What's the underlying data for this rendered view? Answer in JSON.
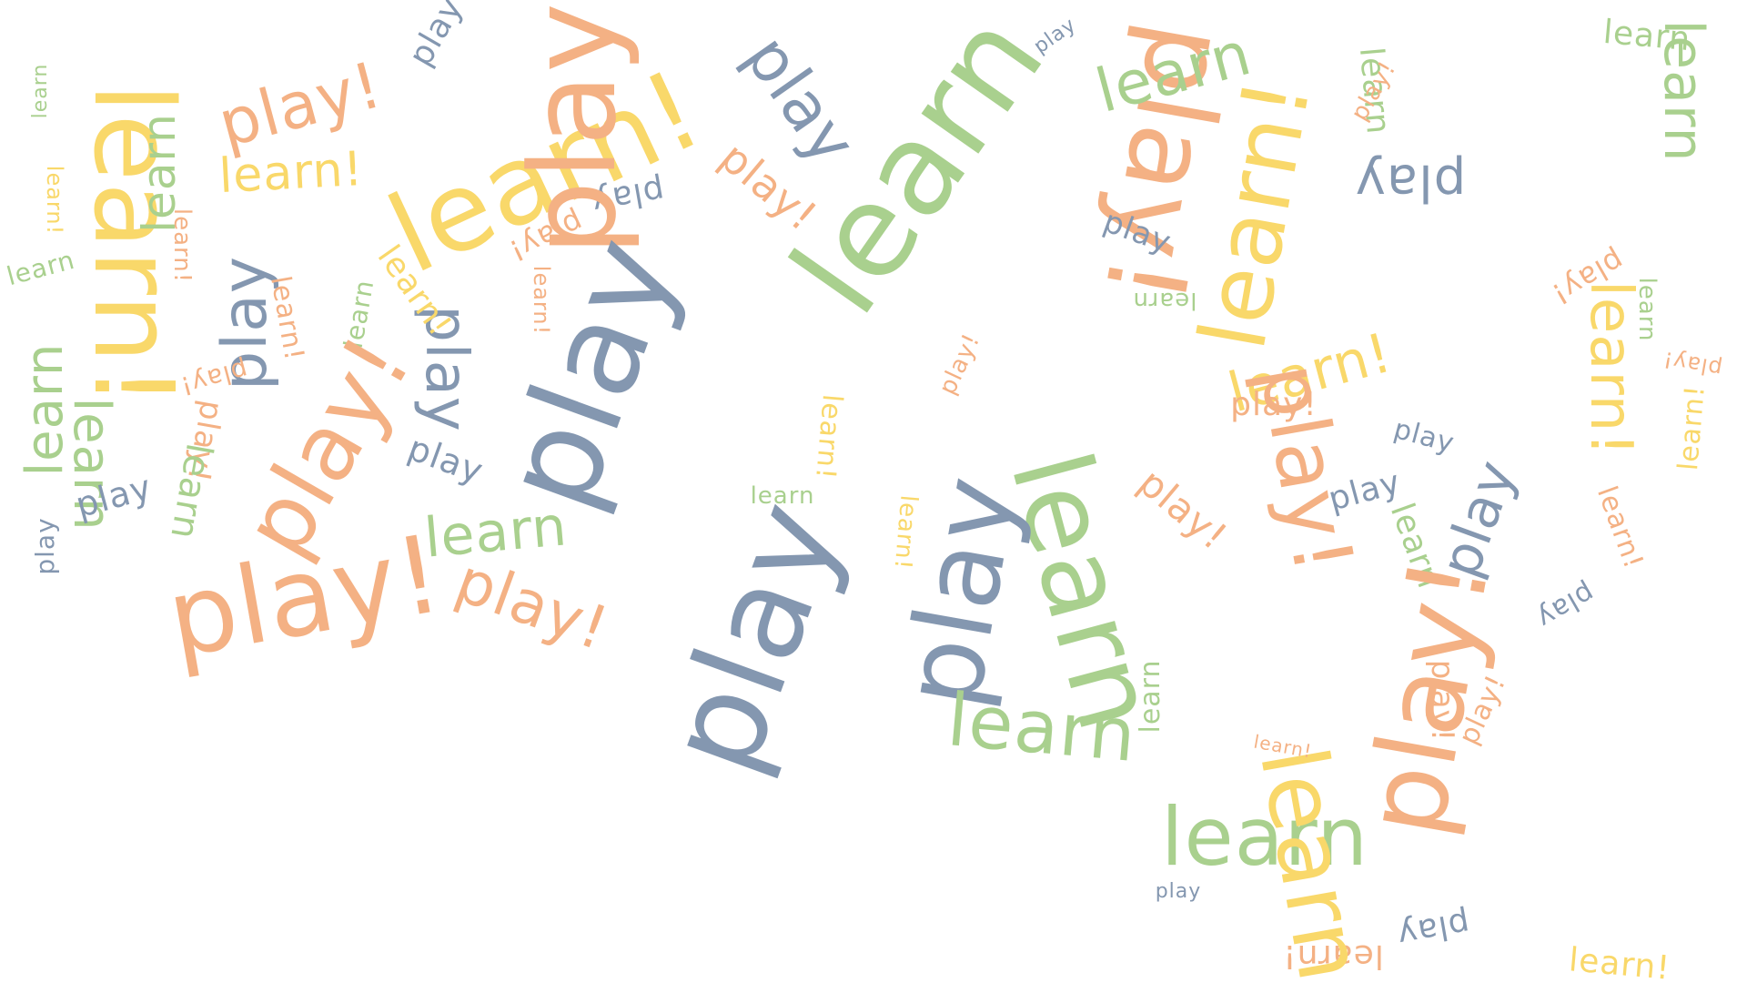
{
  "palette": {
    "yellow": "#f9d86a",
    "orange": "#f4b184",
    "green": "#a9d08e",
    "blue": "#8497b0"
  },
  "words": [
    {
      "text": "learn!",
      "color": "yellow"
    },
    {
      "text": "play!",
      "color": "orange"
    },
    {
      "text": "learn",
      "color": "green"
    },
    {
      "text": "learn!",
      "color": "yellow"
    },
    {
      "text": "play",
      "color": "blue"
    },
    {
      "text": "learn!",
      "color": "yellow"
    },
    {
      "text": "learn",
      "color": "green"
    },
    {
      "text": "learn",
      "color": "green"
    },
    {
      "text": "play",
      "color": "blue"
    },
    {
      "text": "play",
      "color": "blue"
    },
    {
      "text": "learn",
      "color": "green"
    },
    {
      "text": "play!",
      "color": "orange"
    },
    {
      "text": "play",
      "color": "blue"
    },
    {
      "text": "learn",
      "color": "green"
    },
    {
      "text": "learn!",
      "color": "yellow"
    },
    {
      "text": "learn!",
      "color": "orange"
    },
    {
      "text": "play!",
      "color": "orange"
    },
    {
      "text": "learn",
      "color": "green"
    },
    {
      "text": "play!",
      "color": "orange"
    },
    {
      "text": "play",
      "color": "blue"
    },
    {
      "text": "learn!",
      "color": "orange"
    },
    {
      "text": "play",
      "color": "blue"
    },
    {
      "text": "learn",
      "color": "green"
    },
    {
      "text": "play!",
      "color": "orange"
    },
    {
      "text": "learn!",
      "color": "yellow"
    },
    {
      "text": "play!",
      "color": "orange"
    },
    {
      "text": "learn!",
      "color": "orange"
    },
    {
      "text": "play",
      "color": "blue"
    },
    {
      "text": "play!",
      "color": "orange"
    },
    {
      "text": "play",
      "color": "blue"
    },
    {
      "text": "learn",
      "color": "green"
    },
    {
      "text": "play",
      "color": "blue"
    },
    {
      "text": "learn",
      "color": "green"
    },
    {
      "text": "learn!",
      "color": "yellow"
    },
    {
      "text": "learn",
      "color": "green"
    },
    {
      "text": "play!",
      "color": "orange"
    },
    {
      "text": "play",
      "color": "blue"
    },
    {
      "text": "play!",
      "color": "orange"
    },
    {
      "text": "play!",
      "color": "orange"
    },
    {
      "text": "play",
      "color": "blue"
    },
    {
      "text": "learn!",
      "color": "yellow"
    },
    {
      "text": "play!",
      "color": "orange"
    },
    {
      "text": "learn",
      "color": "green"
    },
    {
      "text": "play",
      "color": "blue"
    },
    {
      "text": "learn",
      "color": "green"
    },
    {
      "text": "play!",
      "color": "orange"
    },
    {
      "text": "play!",
      "color": "orange"
    },
    {
      "text": "learn!",
      "color": "yellow"
    },
    {
      "text": "learn",
      "color": "green"
    },
    {
      "text": "play",
      "color": "blue"
    },
    {
      "text": "learn",
      "color": "green"
    },
    {
      "text": "learn!",
      "color": "yellow"
    },
    {
      "text": "play!",
      "color": "orange"
    },
    {
      "text": "play",
      "color": "blue"
    },
    {
      "text": "learn",
      "color": "green"
    },
    {
      "text": "play",
      "color": "blue"
    },
    {
      "text": "learn!",
      "color": "orange"
    },
    {
      "text": "play!",
      "color": "orange"
    },
    {
      "text": "play",
      "color": "blue"
    },
    {
      "text": "learn",
      "color": "green"
    },
    {
      "text": "learn",
      "color": "green"
    },
    {
      "text": "learn",
      "color": "green"
    },
    {
      "text": "learn",
      "color": "green"
    },
    {
      "text": "learn!",
      "color": "orange"
    },
    {
      "text": "learn!",
      "color": "yellow"
    },
    {
      "text": "play!",
      "color": "orange"
    },
    {
      "text": "learn!",
      "color": "yellow"
    },
    {
      "text": "play",
      "color": "blue"
    },
    {
      "text": "learn",
      "color": "green"
    },
    {
      "text": "play!",
      "color": "orange"
    },
    {
      "text": "learn!",
      "color": "yellow"
    },
    {
      "text": "play!",
      "color": "orange"
    },
    {
      "text": "learn",
      "color": "green"
    },
    {
      "text": "play",
      "color": "blue"
    },
    {
      "text": "play",
      "color": "blue"
    },
    {
      "text": "learn!",
      "color": "orange"
    },
    {
      "text": "play",
      "color": "blue"
    },
    {
      "text": "play!",
      "color": "orange"
    },
    {
      "text": "learn!",
      "color": "yellow"
    },
    {
      "text": "play!",
      "color": "orange"
    }
  ]
}
